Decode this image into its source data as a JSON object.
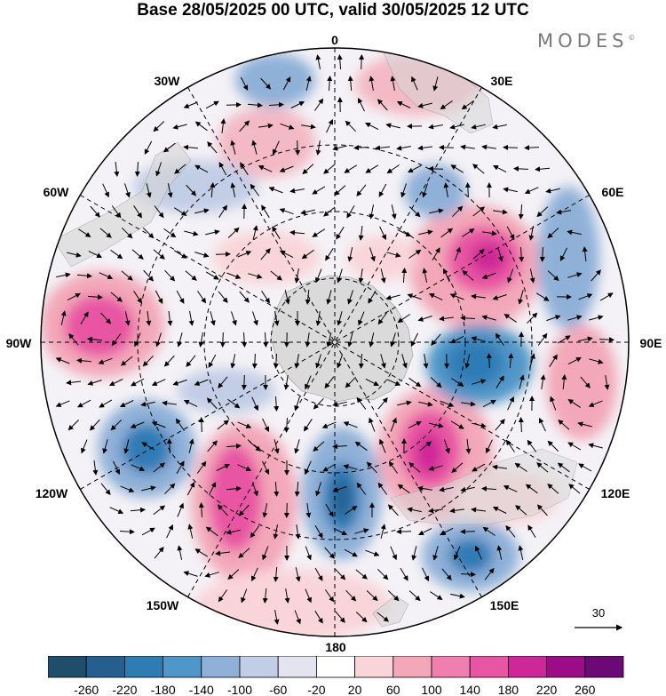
{
  "title": "Base 28/05/2025 00 UTC, valid 30/05/2025 12 UTC",
  "brand": "MODES",
  "brand_mark": "©",
  "longitude_labels": {
    "lon_0": "0",
    "lon_30e": "30E",
    "lon_60e": "60E",
    "lon_90e": "90E",
    "lon_120e": "120E",
    "lon_150e": "150E",
    "lon_180": "180",
    "lon_150w": "150W",
    "lon_120w": "120W",
    "lon_90w": "90W",
    "lon_60w": "60W",
    "lon_30w": "30W"
  },
  "vector_reference": {
    "label": "30"
  },
  "colorbar": {
    "colors": [
      "#1f4e6b",
      "#255f8e",
      "#2f7cb5",
      "#4f97c8",
      "#8fb1d8",
      "#c2cde6",
      "#e4e4f0",
      "#ffffff",
      "#f9d5d9",
      "#f3a8b9",
      "#ef7fae",
      "#e855a3",
      "#cf2797",
      "#9c0c86",
      "#6b0a75"
    ],
    "ticks": [
      "-260",
      "-220",
      "-180",
      "-140",
      "-100",
      "-60",
      "-20",
      "20",
      "60",
      "100",
      "140",
      "180",
      "220",
      "260"
    ]
  },
  "colors": {
    "land": "#d6d6d6",
    "graticule": "#000000"
  }
}
